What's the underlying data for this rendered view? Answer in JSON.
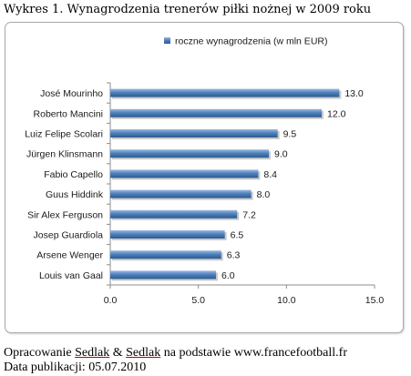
{
  "figure": {
    "title": "Wykres 1. Wynagrodzenia trenerów piłki nożnej w 2009 roku",
    "source_prefix": "Opracowanie ",
    "source_author_1": "Sedlak",
    "source_amp": " & ",
    "source_author_2": "Sedlak",
    "source_suffix": " na podstawie www.francefootball.fr",
    "publication_date": "Data publikacji: 05.07.2010"
  },
  "chart_data": {
    "type": "bar",
    "orientation": "horizontal",
    "title": "",
    "xlabel": "",
    "ylabel": "",
    "legend": {
      "position": "top",
      "entries": [
        "roczne wynagrodzenia (w mln EUR)"
      ]
    },
    "categories": [
      "José Mourinho",
      "Roberto Mancini",
      "Luiz Felipe Scolari",
      "Jürgen Klinsmann",
      "Fabio Capello",
      "Guus Hiddink",
      "Sir Alex Ferguson",
      "Josep Guardiola",
      "Arsene Wenger",
      "Louis van Gaal"
    ],
    "series": [
      {
        "name": "roczne wynagrodzenia (w mln EUR)",
        "values": [
          13.0,
          12.0,
          9.5,
          9.0,
          8.4,
          8.0,
          7.2,
          6.5,
          6.3,
          6.0
        ],
        "value_labels": [
          "13.0",
          "12.0",
          "9.5",
          "9.0",
          "8.4",
          "8.0",
          "7.2",
          "6.5",
          "6.3",
          "6.0"
        ],
        "color": "#4f81bd"
      }
    ],
    "xlim": [
      0,
      15
    ],
    "xticks": [
      "0.0",
      "5.0",
      "10.0",
      "15.0"
    ],
    "xtick_values": [
      0,
      5,
      10,
      15
    ],
    "grid": false
  }
}
